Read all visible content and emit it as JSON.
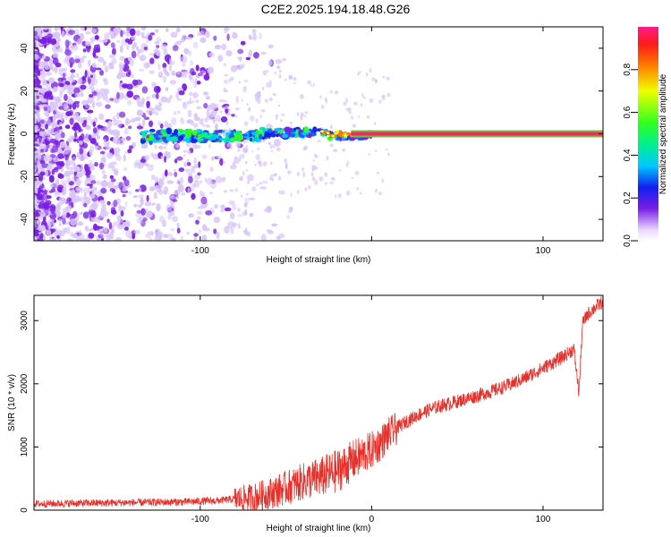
{
  "title": "C2E2.2025.194.18.48.G26",
  "colors": {
    "snr_line": "#e8302a",
    "band": "#e8305a",
    "speckle_light": "#d8c6f8",
    "speckle_dark": "#7a1ee6"
  },
  "chart_data": [
    {
      "type": "heatmap",
      "name": "spectrogram",
      "xlabel": "Height of straight line (km)",
      "ylabel": "Frequency (Hz)",
      "xlim": [
        -197,
        135
      ],
      "ylim": [
        -50,
        50
      ],
      "xticks": [
        -100,
        0,
        100
      ],
      "xtick_labels": [
        "-100",
        "",
        "100"
      ],
      "yticks": [
        -40,
        -20,
        0,
        20,
        40
      ],
      "ytick_labels": [
        "-40",
        "-20",
        "0",
        "20",
        "40"
      ],
      "colorbar": {
        "label": "Normalized spectral amplitude",
        "range": [
          0,
          1
        ],
        "ticks": [
          0.0,
          0.2,
          0.4,
          0.6,
          0.8
        ],
        "tick_labels": [
          "0.0",
          "0.2",
          "0.4",
          "0.6",
          "0.8"
        ],
        "colormap": "rainbow"
      },
      "signal_trace": {
        "x": [
          -135,
          -120,
          -100,
          -80,
          -60,
          -40,
          -20,
          -10,
          -5,
          0,
          10,
          50,
          100,
          135
        ],
        "frequency": [
          -2,
          -1.5,
          -1,
          -0.5,
          0.5,
          0.5,
          0,
          0,
          0,
          -1,
          0,
          0,
          0,
          0
        ],
        "amplitude": [
          0.15,
          0.25,
          0.3,
          0.35,
          0.4,
          0.45,
          0.6,
          0.8,
          0.95,
          0.9,
          0.95,
          0.95,
          0.95,
          0.95
        ]
      },
      "grid": false
    },
    {
      "type": "line",
      "name": "snr",
      "xlabel": "Height of straight line (km)",
      "ylabel": "SNR (10 * v/v)",
      "xlim": [
        -197,
        135
      ],
      "ylim": [
        0,
        3400
      ],
      "xticks": [
        -100,
        0,
        100
      ],
      "xtick_labels": [
        "-100",
        "0",
        "100"
      ],
      "yticks": [
        0,
        1000,
        2000,
        3000
      ],
      "ytick_labels": [
        "0",
        "1000",
        "2000",
        "3000"
      ],
      "x": [
        -197,
        -170,
        -140,
        -110,
        -90,
        -70,
        -60,
        -50,
        -40,
        -30,
        -20,
        -10,
        0,
        5,
        10,
        20,
        30,
        40,
        50,
        60,
        70,
        80,
        90,
        100,
        110,
        118,
        121,
        123,
        126,
        130,
        135
      ],
      "y": [
        100,
        110,
        120,
        130,
        150,
        200,
        260,
        350,
        450,
        520,
        620,
        800,
        950,
        1060,
        1200,
        1400,
        1550,
        1650,
        1720,
        1800,
        1880,
        1980,
        2100,
        2250,
        2400,
        2550,
        1850,
        2950,
        3100,
        3200,
        3300
      ],
      "grid": false
    }
  ]
}
